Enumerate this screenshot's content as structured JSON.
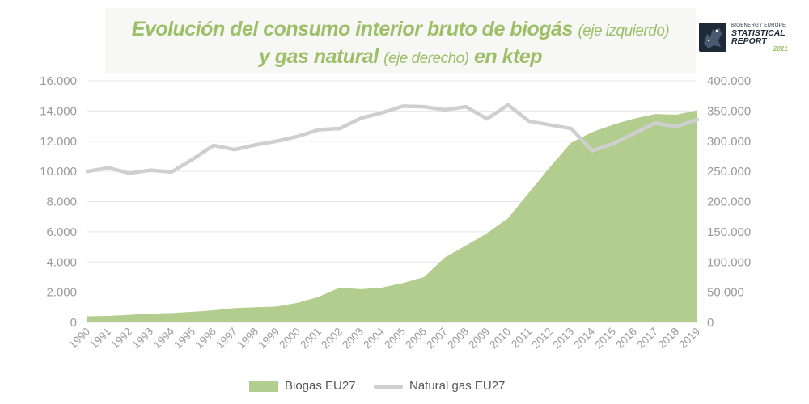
{
  "header": {
    "title_line1_main": "Evolución del consumo interior bruto de biogás",
    "title_line1_sub": "(eje izquierdo)",
    "title_line2_main1": "y gas natural",
    "title_line2_sub": "(eje derecho)",
    "title_line2_main2": "en ktep"
  },
  "logo": {
    "small": "BIOENERGY EUROPE",
    "line1": "STATISTICAL",
    "line2": "REPORT",
    "year": "2021"
  },
  "colors": {
    "biogas": "#b2cd8e",
    "natural_gas": "#cfcfcf",
    "title": "#9cbf68"
  },
  "chart_data": {
    "type": "area",
    "title": "Evolución del consumo interior bruto de biogás (eje izquierdo) y gas natural (eje derecho) en ktep",
    "x": [
      "1990",
      "1991",
      "1992",
      "1993",
      "1994",
      "1995",
      "1996",
      "1997",
      "1998",
      "1999",
      "2000",
      "2001",
      "2002",
      "2003",
      "2004",
      "2005",
      "2006",
      "2007",
      "2008",
      "2009",
      "2010",
      "2011",
      "2012",
      "2013",
      "2014",
      "2015",
      "2016",
      "2017",
      "2018",
      "2019"
    ],
    "left_axis": {
      "ylim": [
        0,
        16000
      ],
      "ticks": [
        "0",
        "2.000",
        "4.000",
        "6.000",
        "8.000",
        "10.000",
        "12.000",
        "14.000",
        "16.000"
      ]
    },
    "right_axis": {
      "ylim": [
        0,
        400000
      ],
      "ticks": [
        "0",
        "50.000",
        "100.000",
        "150.000",
        "200.000",
        "250.000",
        "300.000",
        "350.000",
        "400.000"
      ]
    },
    "series": [
      {
        "name": "Biogas EU27",
        "type": "area",
        "axis": "left",
        "values": [
          400,
          430,
          500,
          580,
          620,
          700,
          800,
          950,
          1000,
          1050,
          1300,
          1700,
          2300,
          2200,
          2300,
          2600,
          3000,
          4300,
          5100,
          5900,
          6900,
          8600,
          10300,
          11900,
          12600,
          13100,
          13500,
          13800,
          13750,
          14050
        ]
      },
      {
        "name": "Natural gas EU27",
        "type": "line",
        "axis": "right",
        "values": [
          250000,
          256000,
          247000,
          252000,
          249000,
          270000,
          293000,
          286000,
          294000,
          300000,
          308000,
          319000,
          321000,
          338000,
          347000,
          358000,
          357000,
          352000,
          357000,
          337000,
          360000,
          333000,
          327000,
          321000,
          284000,
          296000,
          313000,
          330000,
          324000,
          336000
        ]
      }
    ],
    "grid": true,
    "legend": "bottom-center"
  }
}
